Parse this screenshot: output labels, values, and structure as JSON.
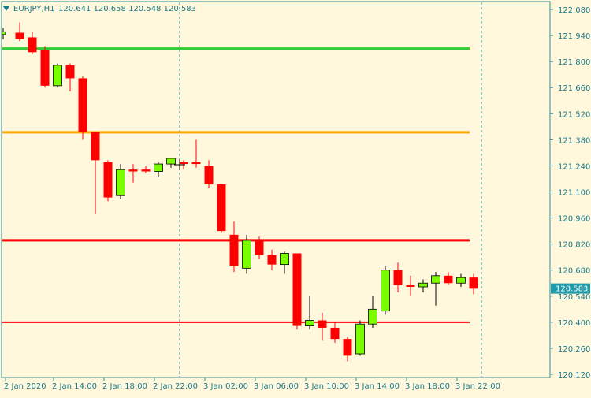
{
  "header": {
    "symbol": "EURJPY,H1",
    "ohlc": "120.641 120.658 120.548 120.583"
  },
  "colors": {
    "background": "#FFF8DC",
    "bull": "#7CFC00",
    "bear": "#FF0000",
    "axis": "#2B8FA0",
    "text": "#1A7A8C",
    "price_tag_bg": "#1E9AAA",
    "level_green": "#32CD32",
    "level_orange": "#FFA500",
    "level_red": "#FF0000"
  },
  "price_tag": "120.583",
  "chart_data": {
    "type": "candlestick",
    "ylim": [
      120.12,
      122.08
    ],
    "y_ticks": [
      "122.080",
      "121.940",
      "121.800",
      "121.660",
      "121.520",
      "121.380",
      "121.240",
      "121.100",
      "120.960",
      "120.820",
      "120.680",
      "120.540",
      "120.400",
      "120.260",
      "120.120"
    ],
    "x_ticks": [
      "2 Jan 2020",
      "2 Jan 14:00",
      "2 Jan 18:00",
      "2 Jan 22:00",
      "3 Jan 02:00",
      "3 Jan 06:00",
      "3 Jan 10:00",
      "3 Jan 14:00",
      "3 Jan 18:00",
      "3 Jan 22:00"
    ],
    "levels": [
      {
        "price": 121.87,
        "color": "level_green"
      },
      {
        "price": 121.42,
        "color": "level_orange"
      },
      {
        "price": 120.84,
        "color": "level_red"
      },
      {
        "price": 120.4,
        "color": "level_red"
      }
    ],
    "period_separators": [
      "2 Jan 22:00",
      "3 Jan 22:00"
    ],
    "candles": [
      {
        "o": 121.945,
        "h": 121.98,
        "l": 121.92,
        "c": 121.96
      },
      {
        "o": 121.955,
        "h": 122.01,
        "l": 121.91,
        "c": 121.92
      },
      {
        "o": 121.93,
        "h": 121.96,
        "l": 121.84,
        "c": 121.85
      },
      {
        "o": 121.86,
        "h": 121.88,
        "l": 121.66,
        "c": 121.67
      },
      {
        "o": 121.67,
        "h": 121.79,
        "l": 121.66,
        "c": 121.78
      },
      {
        "o": 121.78,
        "h": 121.79,
        "l": 121.64,
        "c": 121.71
      },
      {
        "o": 121.71,
        "h": 121.72,
        "l": 121.38,
        "c": 121.42
      },
      {
        "o": 121.42,
        "h": 121.42,
        "l": 120.98,
        "c": 121.27
      },
      {
        "o": 121.26,
        "h": 121.27,
        "l": 121.05,
        "c": 121.07
      },
      {
        "o": 121.08,
        "h": 121.25,
        "l": 121.06,
        "c": 121.22
      },
      {
        "o": 121.22,
        "h": 121.25,
        "l": 121.15,
        "c": 121.21
      },
      {
        "o": 121.22,
        "h": 121.24,
        "l": 121.2,
        "c": 121.21
      },
      {
        "o": 121.21,
        "h": 121.26,
        "l": 121.18,
        "c": 121.25
      },
      {
        "o": 121.25,
        "h": 121.28,
        "l": 121.23,
        "c": 121.28
      },
      {
        "o": 121.26,
        "h": 121.27,
        "l": 121.22,
        "c": 121.25
      },
      {
        "o": 121.26,
        "h": 121.38,
        "l": 121.23,
        "c": 121.25
      },
      {
        "o": 121.24,
        "h": 121.27,
        "l": 121.12,
        "c": 121.14
      },
      {
        "o": 121.14,
        "h": 121.14,
        "l": 120.88,
        "c": 120.89
      },
      {
        "o": 120.87,
        "h": 120.94,
        "l": 120.67,
        "c": 120.7
      },
      {
        "o": 120.69,
        "h": 120.87,
        "l": 120.66,
        "c": 120.84
      },
      {
        "o": 120.84,
        "h": 120.86,
        "l": 120.74,
        "c": 120.76
      },
      {
        "o": 120.76,
        "h": 120.79,
        "l": 120.68,
        "c": 120.71
      },
      {
        "o": 120.71,
        "h": 120.78,
        "l": 120.66,
        "c": 120.77
      },
      {
        "o": 120.77,
        "h": 120.77,
        "l": 120.36,
        "c": 120.38
      },
      {
        "o": 120.38,
        "h": 120.54,
        "l": 120.36,
        "c": 120.41
      },
      {
        "o": 120.41,
        "h": 120.45,
        "l": 120.3,
        "c": 120.37
      },
      {
        "o": 120.37,
        "h": 120.4,
        "l": 120.29,
        "c": 120.31
      },
      {
        "o": 120.31,
        "h": 120.32,
        "l": 120.19,
        "c": 120.22
      },
      {
        "o": 120.23,
        "h": 120.41,
        "l": 120.22,
        "c": 120.39
      },
      {
        "o": 120.39,
        "h": 120.54,
        "l": 120.37,
        "c": 120.47
      },
      {
        "o": 120.46,
        "h": 120.7,
        "l": 120.44,
        "c": 120.68
      },
      {
        "o": 120.68,
        "h": 120.72,
        "l": 120.56,
        "c": 120.6
      },
      {
        "o": 120.6,
        "h": 120.65,
        "l": 120.54,
        "c": 120.59
      },
      {
        "o": 120.59,
        "h": 120.63,
        "l": 120.56,
        "c": 120.61
      },
      {
        "o": 120.61,
        "h": 120.67,
        "l": 120.49,
        "c": 120.65
      },
      {
        "o": 120.65,
        "h": 120.67,
        "l": 120.6,
        "c": 120.61
      },
      {
        "o": 120.61,
        "h": 120.66,
        "l": 120.59,
        "c": 120.64
      },
      {
        "o": 120.64,
        "h": 120.66,
        "l": 120.55,
        "c": 120.58
      }
    ]
  }
}
